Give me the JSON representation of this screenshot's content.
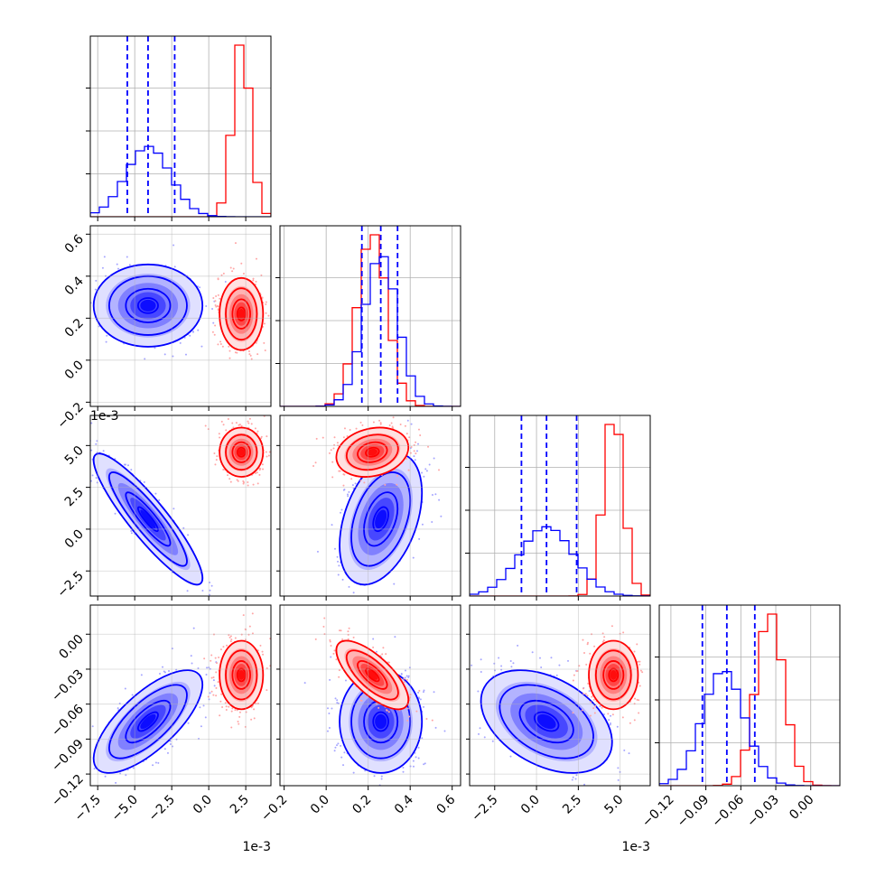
{
  "chart_data": {
    "type": "corner",
    "grid": true,
    "series": [
      {
        "color": "#0000ff"
      },
      {
        "color": "#ff0000"
      }
    ],
    "parameters": [
      {
        "range": [
          -8.0,
          4.2
        ],
        "ticks": [
          -7.5,
          -5.0,
          -2.5,
          0.0,
          2.5
        ],
        "tick_labels": [
          "−7.5",
          "−5.0",
          "−2.5",
          "0.0",
          "2.5"
        ],
        "offset_label": "1e-3",
        "blue": {
          "mean": -4.1,
          "std": 1.5
        },
        "red": {
          "mean": 2.2,
          "std": 0.6
        },
        "quantiles": [
          -5.5,
          -4.1,
          -2.3
        ]
      },
      {
        "range": [
          -0.22,
          0.64
        ],
        "ticks": [
          -0.2,
          0.0,
          0.2,
          0.4,
          0.6
        ],
        "tick_labels": [
          "−0.2",
          "0.0",
          "0.2",
          "0.4",
          "0.6"
        ],
        "offset_label": "",
        "blue": {
          "mean": 0.26,
          "std": 0.08
        },
        "red": {
          "mean": 0.22,
          "std": 0.07
        },
        "quantiles": [
          0.17,
          0.26,
          0.34
        ]
      },
      {
        "range": [
          -4.0,
          6.8
        ],
        "ticks": [
          -2.5,
          0.0,
          2.5,
          5.0
        ],
        "tick_labels": [
          "−2.5",
          "0.0",
          "2.5",
          "5.0"
        ],
        "offset_label": "1e-3",
        "blue": {
          "mean": 0.6,
          "std": 1.6
        },
        "red": {
          "mean": 4.6,
          "std": 0.6
        },
        "quantiles": [
          -0.9,
          0.6,
          2.4
        ]
      },
      {
        "range": [
          -0.13,
          0.025
        ],
        "ticks": [
          -0.12,
          -0.09,
          -0.06,
          -0.03,
          0.0
        ],
        "tick_labels": [
          "−0.12",
          "−0.09",
          "−0.06",
          "−0.03",
          "0.00"
        ],
        "offset_label": "",
        "blue": {
          "mean": -0.075,
          "std": 0.018
        },
        "red": {
          "mean": -0.035,
          "std": 0.012
        },
        "quantiles": [
          -0.093,
          -0.072,
          -0.048
        ]
      }
    ],
    "correlations": {
      "blue": [
        [
          1,
          0.0,
          -0.9,
          0.72
        ],
        [
          0.0,
          1,
          0.4,
          0.0
        ],
        [
          -0.9,
          0.4,
          1,
          -0.4
        ],
        [
          0.72,
          0.0,
          -0.4,
          1
        ]
      ],
      "red": [
        [
          1,
          0.0,
          0.0,
          0.0
        ],
        [
          0.0,
          1,
          0.2,
          -0.72
        ],
        [
          0.0,
          0.2,
          1,
          0.0
        ],
        [
          0.0,
          -0.72,
          0.0,
          1
        ]
      ]
    }
  }
}
